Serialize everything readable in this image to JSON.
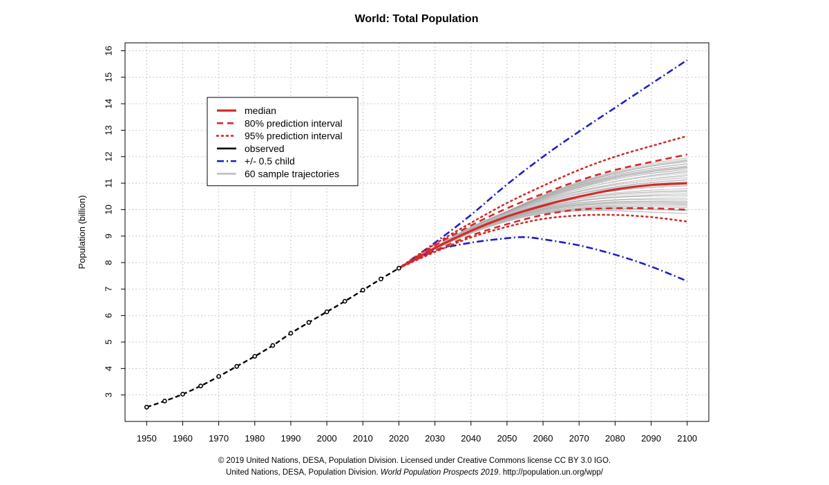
{
  "chart_data": {
    "type": "line",
    "title": "World: Total Population",
    "xlabel": "",
    "ylabel": "Population (billion)",
    "xlim": [
      1944,
      2106
    ],
    "ylim": [
      2.0,
      16.3
    ],
    "x_ticks": [
      1950,
      1960,
      1970,
      1980,
      1990,
      2000,
      2010,
      2020,
      2030,
      2040,
      2050,
      2060,
      2070,
      2080,
      2090,
      2100
    ],
    "y_ticks": [
      3,
      4,
      5,
      6,
      7,
      8,
      9,
      10,
      11,
      12,
      13,
      14,
      15,
      16
    ],
    "grid": true,
    "legend": {
      "placement": "top-left",
      "entries": [
        {
          "label": "median",
          "color": "#d42a2a",
          "style": "solid-thick"
        },
        {
          "label": "80% prediction interval",
          "color": "#d42a2a",
          "style": "dashed"
        },
        {
          "label": "95% prediction interval",
          "color": "#d42a2a",
          "style": "dotted"
        },
        {
          "label": "observed",
          "color": "#000000",
          "style": "solid"
        },
        {
          "label": "+/- 0.5 child",
          "color": "#1f1fc8",
          "style": "dashdot"
        },
        {
          "label": "60 sample trajectories",
          "color": "#bdbdbd",
          "style": "solid"
        }
      ]
    },
    "series": [
      {
        "name": "observed",
        "x": [
          1950,
          1955,
          1960,
          1965,
          1970,
          1975,
          1980,
          1985,
          1990,
          1995,
          2000,
          2005,
          2010,
          2015,
          2020
        ],
        "values": [
          2.54,
          2.77,
          3.03,
          3.34,
          3.7,
          4.08,
          4.46,
          4.87,
          5.33,
          5.74,
          6.14,
          6.54,
          6.96,
          7.38,
          7.79
        ]
      },
      {
        "name": "median",
        "x": [
          2020,
          2030,
          2040,
          2050,
          2060,
          2070,
          2080,
          2090,
          2100
        ],
        "values": [
          7.79,
          8.55,
          9.2,
          9.74,
          10.15,
          10.49,
          10.76,
          10.93,
          11.0
        ]
      },
      {
        "name": "80% prediction interval upper",
        "x": [
          2020,
          2030,
          2040,
          2050,
          2060,
          2070,
          2080,
          2090,
          2100
        ],
        "values": [
          7.79,
          8.65,
          9.4,
          10.05,
          10.6,
          11.1,
          11.5,
          11.8,
          12.08
        ]
      },
      {
        "name": "80% prediction interval lower",
        "x": [
          2020,
          2030,
          2040,
          2050,
          2060,
          2070,
          2080,
          2090,
          2100
        ],
        "values": [
          7.79,
          8.45,
          9.02,
          9.45,
          9.8,
          10.0,
          10.05,
          10.05,
          10.0
        ]
      },
      {
        "name": "95% prediction interval upper",
        "x": [
          2020,
          2030,
          2040,
          2050,
          2060,
          2070,
          2080,
          2090,
          2100
        ],
        "values": [
          7.79,
          8.7,
          9.5,
          10.25,
          10.9,
          11.5,
          12.0,
          12.4,
          12.78
        ]
      },
      {
        "name": "95% prediction interval lower",
        "x": [
          2020,
          2030,
          2040,
          2050,
          2060,
          2070,
          2080,
          2090,
          2100
        ],
        "values": [
          7.79,
          8.4,
          8.95,
          9.35,
          9.65,
          9.78,
          9.8,
          9.72,
          9.55
        ]
      },
      {
        "name": "+/- 0.5 child upper",
        "x": [
          2020,
          2030,
          2040,
          2050,
          2060,
          2070,
          2080,
          2090,
          2100
        ],
        "values": [
          7.79,
          8.75,
          9.8,
          10.95,
          12.0,
          12.95,
          13.85,
          14.75,
          15.65
        ]
      },
      {
        "name": "+/- 0.5 child lower",
        "x": [
          2020,
          2030,
          2040,
          2050,
          2055,
          2060,
          2070,
          2080,
          2090,
          2100
        ],
        "values": [
          7.79,
          8.45,
          8.75,
          8.92,
          8.96,
          8.88,
          8.65,
          8.3,
          7.85,
          7.3
        ]
      }
    ],
    "sample_trajectories": {
      "name": "60 sample trajectories",
      "count": 60,
      "x": [
        2020,
        2030,
        2040,
        2050,
        2060,
        2070,
        2080,
        2090,
        2100
      ],
      "envelope_low": [
        7.79,
        8.5,
        9.1,
        9.55,
        9.85,
        9.95,
        9.95,
        9.9,
        9.85
      ],
      "envelope_high": [
        7.79,
        8.6,
        9.35,
        9.95,
        10.55,
        11.05,
        11.45,
        11.75,
        11.95
      ],
      "color": "#bdbdbd"
    }
  },
  "credits": {
    "line1": "© 2019 United Nations, DESA, Population Division. Licensed under Creative Commons license CC BY 3.0 IGO.",
    "line2_prefix": "United Nations, DESA, Population Division.",
    "line2_italic": "World Population Prospects 2019",
    "line2_suffix": ". http://population.un.org/wpp/"
  }
}
